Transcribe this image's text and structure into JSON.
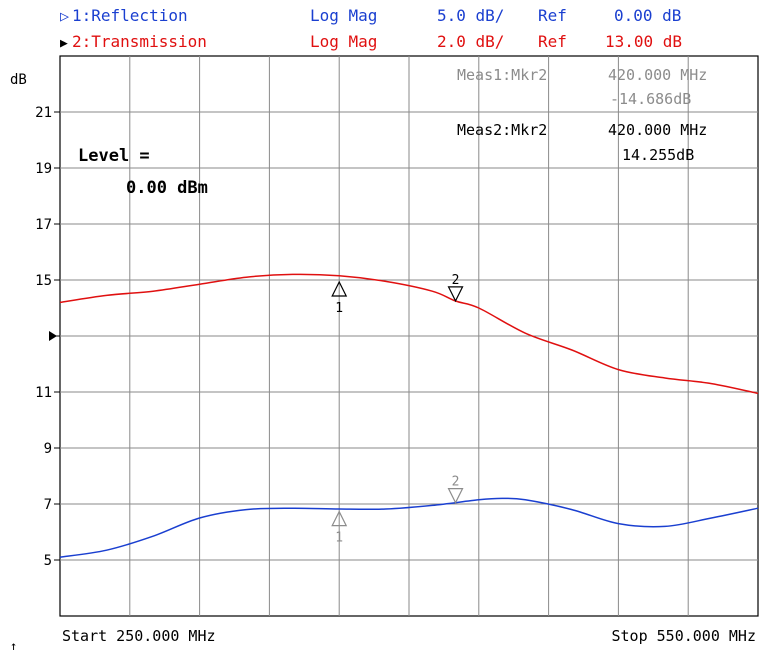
{
  "header": {
    "rows": [
      {
        "id": "reflection",
        "marker": "▷",
        "trace": "1:Reflection",
        "format": "Log Mag",
        "scale": "5.0 dB/",
        "ref_label": "Ref",
        "ref_value": "0.00 dB",
        "color": "#1a3fd0"
      },
      {
        "id": "transmission",
        "marker": "▶",
        "trace": "2:Transmission",
        "format": "Log Mag",
        "scale": "2.0 dB/",
        "ref_label": "Ref",
        "ref_value": "13.00 dB",
        "color": "#e01010"
      }
    ]
  },
  "readouts": [
    {
      "id": "meas1",
      "label": "Meas1:Mkr2",
      "freq": "420.000 MHz",
      "value": "-14.686dB",
      "color": "#8c8c8c"
    },
    {
      "id": "meas2",
      "label": "Meas2:Mkr2",
      "freq": "420.000 MHz",
      "value": "14.255dB",
      "color": "#000000"
    }
  ],
  "level": {
    "label": "Level =",
    "value": "0.00 dBm"
  },
  "footer": {
    "start": "Start 250.000 MHz",
    "stop": "Stop 550.000 MHz",
    "arrow": "↑"
  },
  "chart_data": {
    "type": "line",
    "ylabel": "dB",
    "xlim": [
      250,
      550
    ],
    "ylim": [
      3,
      23
    ],
    "x_unit": "MHz",
    "yticks": [
      5,
      7,
      9,
      11,
      13,
      15,
      17,
      19,
      21
    ],
    "ytick_labels": [
      "5",
      "7",
      "9",
      "11",
      "",
      "15",
      "17",
      "19",
      "21"
    ],
    "ref_marker_y": 13,
    "grid": true,
    "series": [
      {
        "name": "2:Transmission",
        "color": "#e01010",
        "x": [
          250,
          270,
          290,
          310,
          330,
          350,
          370,
          390,
          410,
          420,
          430,
          450,
          470,
          490,
          510,
          530,
          550
        ],
        "y": [
          14.2,
          14.45,
          14.6,
          14.85,
          15.1,
          15.2,
          15.15,
          14.95,
          14.6,
          14.25,
          14.0,
          13.1,
          12.5,
          11.8,
          11.5,
          11.3,
          10.95
        ]
      },
      {
        "name": "1:Reflection",
        "color": "#1a3fd0",
        "x": [
          250,
          270,
          290,
          310,
          330,
          350,
          370,
          390,
          410,
          430,
          440,
          450,
          470,
          490,
          510,
          530,
          550
        ],
        "y": [
          5.1,
          5.35,
          5.85,
          6.5,
          6.8,
          6.85,
          6.82,
          6.82,
          6.95,
          7.15,
          7.2,
          7.15,
          6.8,
          6.3,
          6.2,
          6.5,
          6.85
        ]
      }
    ],
    "markers": [
      {
        "label": "1",
        "x": 370,
        "y": 15.0,
        "color": "#000000",
        "direction": "up"
      },
      {
        "label": "2",
        "x": 420,
        "y": 14.255,
        "color": "#000000",
        "direction": "down"
      },
      {
        "label": "1",
        "x": 370,
        "y": 6.8,
        "color": "#8c8c8c",
        "direction": "up"
      },
      {
        "label": "2",
        "x": 420,
        "y": 7.05,
        "color": "#8c8c8c",
        "direction": "down"
      }
    ]
  }
}
